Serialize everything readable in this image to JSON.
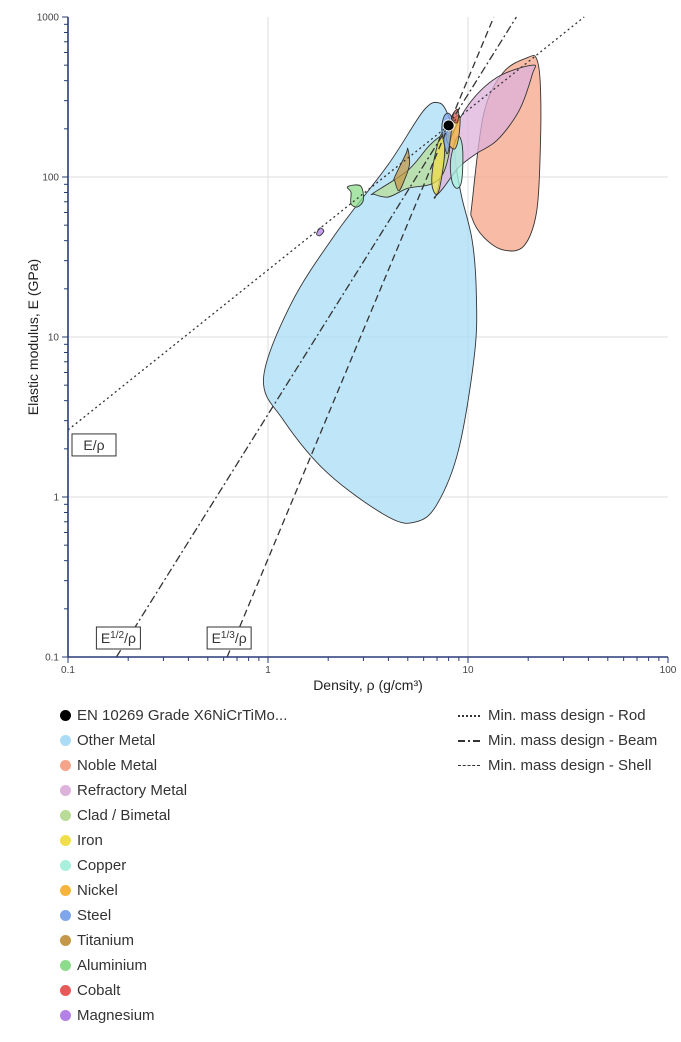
{
  "chart_data": {
    "type": "scatter",
    "xscale": "log",
    "yscale": "log",
    "xlim": [
      0.1,
      100
    ],
    "ylim": [
      0.1,
      1000
    ],
    "xlabel": "Density, ρ (g/cm³)",
    "ylabel": "Elastic modulus, E (GPa)",
    "x_ticks": [
      "0.1",
      "1",
      "10",
      "100"
    ],
    "y_ticks": [
      "0.1",
      "1",
      "10",
      "100",
      "1000"
    ],
    "grid": true,
    "highlight": {
      "name": "EN 10269 Grade X6NiCrTiMo...",
      "x": 8.0,
      "y": 210,
      "color": "#000000"
    },
    "regions": [
      {
        "name": "Other Metal",
        "color": "#aadcf5",
        "points": [
          [
            0.95,
            5.5
          ],
          [
            1.3,
            16
          ],
          [
            2.2,
            45
          ],
          [
            4,
            120
          ],
          [
            6,
            260
          ],
          [
            7.2,
            290
          ],
          [
            8,
            240
          ],
          [
            8.5,
            180
          ],
          [
            8.7,
            120
          ],
          [
            9.3,
            75
          ],
          [
            10.5,
            40
          ],
          [
            11,
            19
          ],
          [
            10.8,
            8
          ],
          [
            9,
            2
          ],
          [
            7,
            0.9
          ],
          [
            5.5,
            0.7
          ],
          [
            4,
            0.75
          ],
          [
            2,
            1.4
          ],
          [
            1.2,
            3
          ]
        ]
      },
      {
        "name": "Noble Metal",
        "color": "#f4a488",
        "points": [
          [
            10.5,
            70
          ],
          [
            12,
            250
          ],
          [
            15,
            450
          ],
          [
            20,
            560
          ],
          [
            22,
            550
          ],
          [
            23,
            380
          ],
          [
            23,
            150
          ],
          [
            22,
            60
          ],
          [
            19,
            37
          ],
          [
            15,
            35
          ],
          [
            12,
            42
          ],
          [
            10.5,
            55
          ]
        ]
      },
      {
        "name": "Refractory Metal",
        "color": "#ddb2db",
        "points": [
          [
            7,
            80
          ],
          [
            8,
            160
          ],
          [
            10,
            280
          ],
          [
            14,
            420
          ],
          [
            21,
            500
          ],
          [
            21,
            440
          ],
          [
            18,
            260
          ],
          [
            14,
            170
          ],
          [
            11,
            140
          ],
          [
            9,
            115
          ],
          [
            7.5,
            85
          ],
          [
            6.8,
            75
          ]
        ]
      },
      {
        "name": "Clad / Bimetal",
        "color": "#b8dc98",
        "points": [
          [
            3.4,
            80
          ],
          [
            5,
            110
          ],
          [
            6.5,
            160
          ],
          [
            7.8,
            185
          ],
          [
            8.1,
            150
          ],
          [
            7.5,
            105
          ],
          [
            6.5,
            90
          ],
          [
            5,
            85
          ],
          [
            4,
            75
          ],
          [
            3.4,
            78
          ]
        ]
      },
      {
        "name": "Iron",
        "color": "#f0de4a",
        "points": [
          [
            6.7,
            120
          ],
          [
            7.2,
            175
          ],
          [
            7.6,
            185
          ],
          [
            7.6,
            130
          ],
          [
            7.2,
            85
          ],
          [
            6.9,
            78
          ],
          [
            6.6,
            90
          ]
        ]
      },
      {
        "name": "Copper",
        "color": "#a8f0dc",
        "points": [
          [
            8.2,
            130
          ],
          [
            8.9,
            180
          ],
          [
            9.4,
            150
          ],
          [
            9.3,
            95
          ],
          [
            8.8,
            85
          ],
          [
            8.3,
            95
          ]
        ]
      },
      {
        "name": "Nickel",
        "color": "#f5b53c",
        "points": [
          [
            7.8,
            185
          ],
          [
            8.5,
            230
          ],
          [
            9.1,
            240
          ],
          [
            9.0,
            180
          ],
          [
            8.6,
            150
          ],
          [
            8.0,
            160
          ]
        ]
      },
      {
        "name": "Steel",
        "color": "#7fa6ea",
        "points": [
          [
            7.4,
            200
          ],
          [
            7.6,
            240
          ],
          [
            8.0,
            250
          ],
          [
            8.3,
            230
          ],
          [
            8.2,
            180
          ],
          [
            7.9,
            140
          ],
          [
            7.6,
            160
          ]
        ]
      },
      {
        "name": "Titanium",
        "color": "#c49848",
        "points": [
          [
            4.3,
            100
          ],
          [
            4.9,
            140
          ],
          [
            5.0,
            150
          ],
          [
            5.1,
            120
          ],
          [
            4.8,
            95
          ],
          [
            4.5,
            82
          ],
          [
            4.3,
            95
          ]
        ]
      },
      {
        "name": "Aluminium",
        "color": "#8cdc8c",
        "points": [
          [
            2.6,
            80
          ],
          [
            2.5,
            87
          ],
          [
            2.9,
            88
          ],
          [
            3.0,
            72
          ],
          [
            2.8,
            65
          ],
          [
            2.6,
            68
          ]
        ]
      },
      {
        "name": "Cobalt",
        "color": "#e85a5a",
        "points": [
          [
            8.3,
            240
          ],
          [
            8.8,
            265
          ],
          [
            9.0,
            245
          ],
          [
            8.8,
            218
          ],
          [
            8.4,
            225
          ]
        ]
      },
      {
        "name": "Magnesium",
        "color": "#b380e5",
        "points": [
          [
            1.75,
            44
          ],
          [
            1.82,
            48
          ],
          [
            1.9,
            46
          ],
          [
            1.82,
            43
          ]
        ]
      }
    ],
    "guide_lines": [
      {
        "name": "Min. mass design - Rod",
        "style": "dotted",
        "label": "E/ρ",
        "exponent": 1,
        "through": [
          8.0,
          210
        ]
      },
      {
        "name": "Min. mass design - Beam",
        "style": "dashdot",
        "label": "E1/2/ρ",
        "label_base": "E",
        "label_sup": "1/2",
        "label_tail": "/ρ",
        "exponent": 2,
        "through": [
          8.0,
          210
        ]
      },
      {
        "name": "Min. mass design - Shell",
        "style": "dashed",
        "label": "E1/3/ρ",
        "label_base": "E",
        "label_sup": "1/3",
        "label_tail": "/ρ",
        "exponent": 3,
        "through": [
          8.0,
          210
        ]
      }
    ]
  },
  "legend": {
    "materials": [
      {
        "label": "EN 10269 Grade X6NiCrTiMo...",
        "color": "#000000"
      },
      {
        "label": "Other Metal",
        "color": "#aadcf5"
      },
      {
        "label": "Noble Metal",
        "color": "#f4a488"
      },
      {
        "label": "Refractory Metal",
        "color": "#ddb2db"
      },
      {
        "label": "Clad / Bimetal",
        "color": "#b8dc98"
      },
      {
        "label": "Iron",
        "color": "#f0de4a"
      },
      {
        "label": "Copper",
        "color": "#a8f0dc"
      },
      {
        "label": "Nickel",
        "color": "#f5b53c"
      },
      {
        "label": "Steel",
        "color": "#7fa6ea"
      },
      {
        "label": "Titanium",
        "color": "#c49848"
      },
      {
        "label": "Aluminium",
        "color": "#8cdc8c"
      },
      {
        "label": "Cobalt",
        "color": "#e85a5a"
      },
      {
        "label": "Magnesium",
        "color": "#b380e5"
      }
    ],
    "guides": [
      {
        "label": "Min. mass design - Rod",
        "style": "dotted"
      },
      {
        "label": "Min. mass design - Beam",
        "style": "dashdot"
      },
      {
        "label": "Min. mass design - Shell",
        "style": "dashed"
      }
    ]
  }
}
